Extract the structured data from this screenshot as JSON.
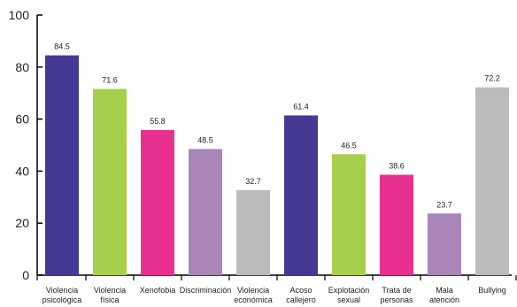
{
  "chart_data": {
    "type": "bar",
    "title": "",
    "xlabel": "",
    "ylabel": "",
    "ylim": [
      0,
      100
    ],
    "yticks": [
      "0",
      "20",
      "40",
      "60",
      "80",
      "100"
    ],
    "categories": [
      [
        "Violencia",
        "psicológica"
      ],
      [
        "Violencia",
        "física"
      ],
      [
        "Xenofobia"
      ],
      [
        "Discriminación"
      ],
      [
        "Violencia",
        "económica"
      ],
      [
        "Acoso",
        "callejero"
      ],
      [
        "Explotación",
        "sexual"
      ],
      [
        "Trata de",
        "personas"
      ],
      [
        "Mala",
        "atención"
      ],
      [
        "Bullying"
      ]
    ],
    "values": [
      84.5,
      71.6,
      55.8,
      48.5,
      32.7,
      61.4,
      46.5,
      38.6,
      23.7,
      72.2
    ],
    "value_labels": [
      "84.5",
      "71.6",
      "55.8",
      "48.5",
      "32.7",
      "61.4",
      "46.5",
      "38.6",
      "23.7",
      "72.2"
    ],
    "colors": [
      "#443a93",
      "#a6cf4d",
      "#e8318f",
      "#a986b8",
      "#bbbbbd",
      "#443a93",
      "#a6cf4d",
      "#e8318f",
      "#a986b8",
      "#bbbbbd"
    ],
    "grid": false
  }
}
